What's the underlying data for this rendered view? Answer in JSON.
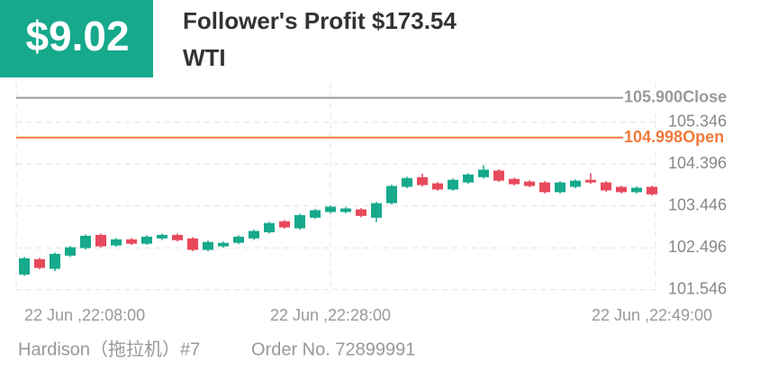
{
  "header": {
    "amount": "$9.02",
    "title": "Follower's Profit $173.54",
    "symbol": "WTI"
  },
  "chart_data": {
    "type": "candlestick",
    "categories": [
      "22 Jun ,22:08:00",
      null,
      null,
      null,
      null,
      null,
      null,
      null,
      null,
      null,
      null,
      null,
      null,
      null,
      null,
      null,
      null,
      null,
      null,
      null,
      "22 Jun ,22:28:00",
      null,
      null,
      null,
      null,
      null,
      null,
      null,
      null,
      null,
      null,
      null,
      null,
      null,
      null,
      null,
      null,
      null,
      null,
      null,
      null,
      "22 Jun ,22:49:00"
    ],
    "open": [
      101.89,
      102.24,
      102.02,
      102.32,
      102.49,
      102.79,
      102.55,
      102.69,
      102.59,
      102.71,
      102.79,
      102.71,
      102.45,
      102.53,
      102.61,
      102.71,
      102.85,
      103.1,
      102.94,
      103.18,
      103.31,
      103.31,
      103.37,
      103.18,
      103.51,
      103.88,
      104.1,
      103.96,
      103.82,
      103.98,
      104.1,
      104.25,
      104.06,
      104.0,
      103.98,
      103.76,
      103.88,
      104.04,
      103.98,
      103.88,
      103.76,
      103.88
    ],
    "high": [
      102.29,
      102.27,
      102.39,
      102.54,
      102.8,
      102.82,
      102.72,
      102.72,
      102.78,
      102.82,
      102.82,
      102.74,
      102.66,
      102.64,
      102.78,
      102.91,
      103.09,
      103.13,
      103.27,
      103.38,
      103.46,
      103.42,
      103.4,
      103.54,
      103.93,
      104.11,
      104.18,
      103.99,
      104.07,
      104.19,
      104.37,
      104.28,
      104.09,
      104.03,
      104.01,
      104.01,
      104.05,
      104.19,
      104.01,
      103.91,
      103.89,
      103.91
    ],
    "low": [
      101.86,
      102.01,
      101.97,
      102.29,
      102.46,
      102.5,
      102.52,
      102.56,
      102.56,
      102.68,
      102.64,
      102.42,
      102.42,
      102.5,
      102.58,
      102.68,
      102.82,
      102.93,
      102.91,
      103.15,
      103.28,
      103.28,
      103.19,
      103.08,
      103.48,
      103.85,
      103.89,
      103.79,
      103.79,
      103.95,
      104.07,
      103.99,
      103.91,
      103.87,
      103.73,
      103.73,
      103.85,
      103.95,
      103.77,
      103.73,
      103.73,
      103.68
    ],
    "close": [
      102.26,
      102.04,
      102.36,
      102.51,
      102.77,
      102.53,
      102.69,
      102.59,
      102.75,
      102.79,
      102.67,
      102.45,
      102.63,
      102.61,
      102.75,
      102.88,
      103.06,
      102.96,
      103.24,
      103.35,
      103.43,
      103.39,
      103.22,
      103.51,
      103.9,
      104.08,
      103.92,
      103.82,
      104.04,
      104.16,
      104.27,
      104.02,
      103.94,
      103.9,
      103.76,
      103.98,
      104.02,
      103.98,
      103.8,
      103.76,
      103.86,
      103.71
    ],
    "up_color": "#16a98b",
    "down_color": "#e8495c",
    "ylim": [
      101.48,
      106.24
    ],
    "yticks": [
      101.546,
      102.496,
      103.446,
      104.396,
      105.346
    ],
    "grid": true,
    "price_lines": [
      {
        "name": "Close",
        "value": 105.9,
        "label": "105.900",
        "color": "#9a9a9a"
      },
      {
        "name": "Open",
        "value": 104.998,
        "label": "104.998",
        "color": "#f07a3a"
      }
    ]
  },
  "footer": {
    "trader": "Hardison（拖拉机）#7",
    "order": "Order No. 72899991"
  }
}
